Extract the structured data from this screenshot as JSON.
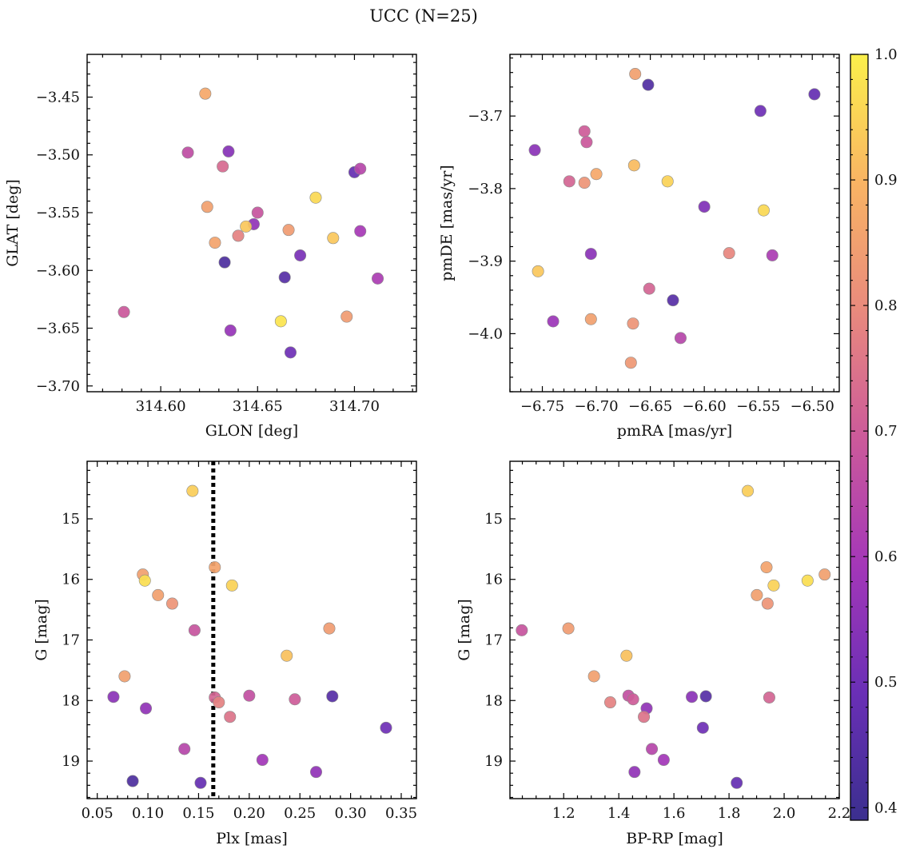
{
  "title": "UCC (N=25)",
  "colormap": {
    "name": "plasma",
    "range": [
      0.39,
      1.0
    ],
    "stops": [
      "#3b2f8f",
      "#6a2fb6",
      "#a437b8",
      "#cc5a9a",
      "#e98a7d",
      "#f9b463",
      "#fbf04b"
    ],
    "ticks": [
      0.4,
      0.5,
      0.6,
      0.7,
      0.8,
      0.9,
      1.0
    ],
    "tick_labels": [
      "0.4",
      "0.5",
      "0.6",
      "0.7",
      "0.8",
      "0.9",
      "1.0"
    ]
  },
  "chart_data": [
    {
      "type": "scatter",
      "name": "glon-glat",
      "xlabel": "GLON [deg]",
      "ylabel": "GLAT [deg]",
      "xlim": [
        314.562,
        314.732
      ],
      "ylim": [
        -3.705,
        -3.413
      ],
      "invert_y": false,
      "xticks": [
        314.6,
        314.65,
        314.7
      ],
      "xtick_labels": [
        "314.60",
        "314.65",
        "314.70"
      ],
      "yticks": [
        -3.45,
        -3.5,
        -3.55,
        -3.6,
        -3.65,
        -3.7
      ],
      "ytick_labels": [
        "−3.45",
        "−3.50",
        "−3.55",
        "−3.60",
        "−3.65",
        "−3.70"
      ],
      "points": [
        {
          "x": 314.623,
          "y": -3.447,
          "c": 0.87
        },
        {
          "x": 314.614,
          "y": -3.498,
          "c": 0.66
        },
        {
          "x": 314.635,
          "y": -3.497,
          "c": 0.54
        },
        {
          "x": 314.632,
          "y": -3.51,
          "c": 0.73
        },
        {
          "x": 314.7,
          "y": -3.515,
          "c": 0.48
        },
        {
          "x": 314.703,
          "y": -3.512,
          "c": 0.64
        },
        {
          "x": 314.68,
          "y": -3.537,
          "c": 0.96
        },
        {
          "x": 314.624,
          "y": -3.545,
          "c": 0.85
        },
        {
          "x": 314.65,
          "y": -3.55,
          "c": 0.68
        },
        {
          "x": 314.648,
          "y": -3.56,
          "c": 0.56
        },
        {
          "x": 314.644,
          "y": -3.562,
          "c": 0.93
        },
        {
          "x": 314.666,
          "y": -3.565,
          "c": 0.84
        },
        {
          "x": 314.703,
          "y": -3.566,
          "c": 0.6
        },
        {
          "x": 314.64,
          "y": -3.57,
          "c": 0.78
        },
        {
          "x": 314.689,
          "y": -3.572,
          "c": 0.93
        },
        {
          "x": 314.628,
          "y": -3.576,
          "c": 0.86
        },
        {
          "x": 314.672,
          "y": -3.587,
          "c": 0.52
        },
        {
          "x": 314.633,
          "y": -3.593,
          "c": 0.43
        },
        {
          "x": 314.664,
          "y": -3.606,
          "c": 0.45
        },
        {
          "x": 314.712,
          "y": -3.607,
          "c": 0.61
        },
        {
          "x": 314.581,
          "y": -3.636,
          "c": 0.69
        },
        {
          "x": 314.696,
          "y": -3.64,
          "c": 0.84
        },
        {
          "x": 314.662,
          "y": -3.644,
          "c": 0.98
        },
        {
          "x": 314.636,
          "y": -3.652,
          "c": 0.57
        },
        {
          "x": 314.667,
          "y": -3.671,
          "c": 0.5
        }
      ]
    },
    {
      "type": "scatter",
      "name": "pmra-pmde",
      "xlabel": "pmRA [mas/yr]",
      "ylabel": "pmDE [mas/yr]",
      "xlim": [
        -6.78,
        -6.475
      ],
      "ylim": [
        -4.08,
        -3.615
      ],
      "invert_y": false,
      "xticks": [
        -6.75,
        -6.7,
        -6.65,
        -6.6,
        -6.55,
        -6.5
      ],
      "xtick_labels": [
        "−6.75",
        "−6.70",
        "−6.65",
        "−6.60",
        "−6.55",
        "−6.50"
      ],
      "yticks": [
        -3.7,
        -3.8,
        -3.9,
        -4.0
      ],
      "ytick_labels": [
        "−3.7",
        "−3.8",
        "−3.9",
        "−4.0"
      ],
      "points": [
        {
          "x": -6.664,
          "y": -3.642,
          "c": 0.85
        },
        {
          "x": -6.652,
          "y": -3.657,
          "c": 0.44
        },
        {
          "x": -6.498,
          "y": -3.67,
          "c": 0.48
        },
        {
          "x": -6.548,
          "y": -3.693,
          "c": 0.5
        },
        {
          "x": -6.711,
          "y": -3.721,
          "c": 0.7
        },
        {
          "x": -6.709,
          "y": -3.736,
          "c": 0.69
        },
        {
          "x": -6.757,
          "y": -3.747,
          "c": 0.55
        },
        {
          "x": -6.665,
          "y": -3.768,
          "c": 0.91
        },
        {
          "x": -6.7,
          "y": -3.78,
          "c": 0.87
        },
        {
          "x": -6.725,
          "y": -3.79,
          "c": 0.72
        },
        {
          "x": -6.711,
          "y": -3.792,
          "c": 0.82
        },
        {
          "x": -6.634,
          "y": -3.79,
          "c": 0.95
        },
        {
          "x": -6.6,
          "y": -3.825,
          "c": 0.53
        },
        {
          "x": -6.545,
          "y": -3.83,
          "c": 0.96
        },
        {
          "x": -6.577,
          "y": -3.889,
          "c": 0.79
        },
        {
          "x": -6.537,
          "y": -3.892,
          "c": 0.61
        },
        {
          "x": -6.705,
          "y": -3.89,
          "c": 0.55
        },
        {
          "x": -6.754,
          "y": -3.914,
          "c": 0.93
        },
        {
          "x": -6.651,
          "y": -3.938,
          "c": 0.72
        },
        {
          "x": -6.629,
          "y": -3.954,
          "c": 0.45
        },
        {
          "x": -6.74,
          "y": -3.983,
          "c": 0.58
        },
        {
          "x": -6.705,
          "y": -3.98,
          "c": 0.85
        },
        {
          "x": -6.666,
          "y": -3.986,
          "c": 0.82
        },
        {
          "x": -6.622,
          "y": -4.006,
          "c": 0.64
        },
        {
          "x": -6.668,
          "y": -4.04,
          "c": 0.83
        }
      ]
    },
    {
      "type": "scatter",
      "name": "plx-g",
      "xlabel": "Plx [mas]",
      "ylabel": "G [mag]",
      "xlim": [
        0.04,
        0.365
      ],
      "ylim": [
        14.05,
        19.62
      ],
      "invert_y": true,
      "xticks": [
        0.05,
        0.1,
        0.15,
        0.2,
        0.25,
        0.3,
        0.35
      ],
      "xtick_labels": [
        "0.05",
        "0.10",
        "0.15",
        "0.20",
        "0.25",
        "0.30",
        "0.35"
      ],
      "yticks": [
        15,
        16,
        17,
        18,
        19
      ],
      "ytick_labels": [
        "15",
        "16",
        "17",
        "18",
        "19"
      ],
      "vline": {
        "x": 0.1645,
        "style": "dotted"
      },
      "points": [
        {
          "x": 0.144,
          "y": 14.54,
          "c": 0.94
        },
        {
          "x": 0.095,
          "y": 15.92,
          "c": 0.85
        },
        {
          "x": 0.097,
          "y": 16.02,
          "c": 0.97
        },
        {
          "x": 0.166,
          "y": 15.8,
          "c": 0.86
        },
        {
          "x": 0.183,
          "y": 16.1,
          "c": 0.95
        },
        {
          "x": 0.11,
          "y": 16.26,
          "c": 0.85
        },
        {
          "x": 0.124,
          "y": 16.4,
          "c": 0.82
        },
        {
          "x": 0.146,
          "y": 16.84,
          "c": 0.68
        },
        {
          "x": 0.279,
          "y": 16.81,
          "c": 0.84
        },
        {
          "x": 0.237,
          "y": 17.26,
          "c": 0.92
        },
        {
          "x": 0.077,
          "y": 17.6,
          "c": 0.85
        },
        {
          "x": 0.066,
          "y": 17.94,
          "c": 0.55
        },
        {
          "x": 0.098,
          "y": 18.13,
          "c": 0.56
        },
        {
          "x": 0.166,
          "y": 17.95,
          "c": 0.72
        },
        {
          "x": 0.17,
          "y": 18.03,
          "c": 0.78
        },
        {
          "x": 0.2,
          "y": 17.92,
          "c": 0.67
        },
        {
          "x": 0.245,
          "y": 17.98,
          "c": 0.7
        },
        {
          "x": 0.282,
          "y": 17.93,
          "c": 0.45
        },
        {
          "x": 0.181,
          "y": 18.27,
          "c": 0.75
        },
        {
          "x": 0.335,
          "y": 18.45,
          "c": 0.5
        },
        {
          "x": 0.136,
          "y": 18.8,
          "c": 0.64
        },
        {
          "x": 0.213,
          "y": 18.98,
          "c": 0.59
        },
        {
          "x": 0.266,
          "y": 19.18,
          "c": 0.56
        },
        {
          "x": 0.085,
          "y": 19.33,
          "c": 0.43
        },
        {
          "x": 0.152,
          "y": 19.36,
          "c": 0.48
        }
      ]
    },
    {
      "type": "scatter",
      "name": "bprp-g",
      "xlabel": "BP-RP [mag]",
      "ylabel": "G [mag]",
      "xlim": [
        1.005,
        2.2
      ],
      "ylim": [
        14.05,
        19.62
      ],
      "invert_y": true,
      "xticks": [
        1.2,
        1.4,
        1.6,
        1.8,
        2.0,
        2.2
      ],
      "xtick_labels": [
        "1.2",
        "1.4",
        "1.6",
        "1.8",
        "2.0",
        "2.2"
      ],
      "yticks": [
        15,
        16,
        17,
        18,
        19
      ],
      "ytick_labels": [
        "15",
        "16",
        "17",
        "18",
        "19"
      ],
      "points": [
        {
          "x": 1.868,
          "y": 14.54,
          "c": 0.94
        },
        {
          "x": 2.147,
          "y": 15.92,
          "c": 0.85
        },
        {
          "x": 1.936,
          "y": 15.8,
          "c": 0.86
        },
        {
          "x": 2.085,
          "y": 16.02,
          "c": 0.97
        },
        {
          "x": 1.962,
          "y": 16.1,
          "c": 0.95
        },
        {
          "x": 1.901,
          "y": 16.26,
          "c": 0.85
        },
        {
          "x": 1.94,
          "y": 16.4,
          "c": 0.82
        },
        {
          "x": 1.048,
          "y": 16.84,
          "c": 0.68
        },
        {
          "x": 1.217,
          "y": 16.81,
          "c": 0.84
        },
        {
          "x": 1.428,
          "y": 17.26,
          "c": 0.92
        },
        {
          "x": 1.31,
          "y": 17.6,
          "c": 0.85
        },
        {
          "x": 1.435,
          "y": 17.92,
          "c": 0.67
        },
        {
          "x": 1.452,
          "y": 17.98,
          "c": 0.7
        },
        {
          "x": 1.369,
          "y": 18.03,
          "c": 0.78
        },
        {
          "x": 1.665,
          "y": 17.94,
          "c": 0.55
        },
        {
          "x": 1.716,
          "y": 17.93,
          "c": 0.45
        },
        {
          "x": 1.946,
          "y": 17.95,
          "c": 0.72
        },
        {
          "x": 1.501,
          "y": 18.13,
          "c": 0.56
        },
        {
          "x": 1.491,
          "y": 18.27,
          "c": 0.75
        },
        {
          "x": 1.705,
          "y": 18.45,
          "c": 0.5
        },
        {
          "x": 1.52,
          "y": 18.8,
          "c": 0.64
        },
        {
          "x": 1.563,
          "y": 18.98,
          "c": 0.59
        },
        {
          "x": 1.457,
          "y": 19.18,
          "c": 0.56
        },
        {
          "x": 1.828,
          "y": 19.36,
          "c": 0.48
        }
      ]
    }
  ]
}
